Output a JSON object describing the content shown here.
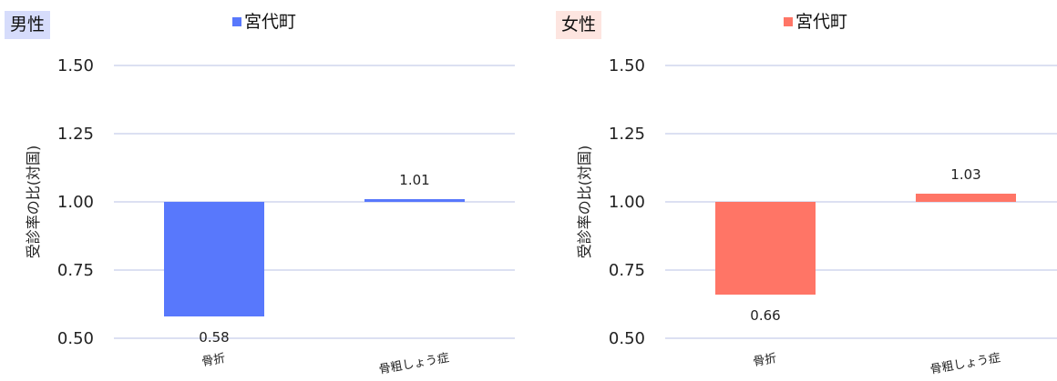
{
  "chart_data": [
    {
      "type": "bar",
      "panel_label": "男性",
      "legend": "宮代町",
      "series": [
        {
          "name": "宮代町",
          "values": [
            0.58,
            1.01
          ]
        }
      ],
      "categories": [
        "骨折",
        "骨粗しょう症"
      ],
      "data_labels": [
        "0.58",
        "1.01"
      ],
      "ylabel": "受診率の比(対国)",
      "ylim": [
        0.5,
        1.5
      ],
      "yticks": [
        "0.50",
        "0.75",
        "1.00",
        "1.25",
        "1.50"
      ],
      "baseline": 1.0,
      "grid": true,
      "colors": {
        "bar": "#5878FC",
        "badge_bg": "#D6DCFB",
        "grid": "#D0D6EE"
      }
    },
    {
      "type": "bar",
      "panel_label": "女性",
      "legend": "宮代町",
      "series": [
        {
          "name": "宮代町",
          "values": [
            0.66,
            1.03
          ]
        }
      ],
      "categories": [
        "骨折",
        "骨粗しょう症"
      ],
      "data_labels": [
        "0.66",
        "1.03"
      ],
      "ylabel": "受診率の比(対国)",
      "ylim": [
        0.5,
        1.5
      ],
      "yticks": [
        "0.50",
        "0.75",
        "1.00",
        "1.25",
        "1.50"
      ],
      "baseline": 1.0,
      "grid": true,
      "colors": {
        "bar": "#FF7566",
        "badge_bg": "#FDE5E0",
        "grid": "#D0D6EE"
      }
    }
  ]
}
